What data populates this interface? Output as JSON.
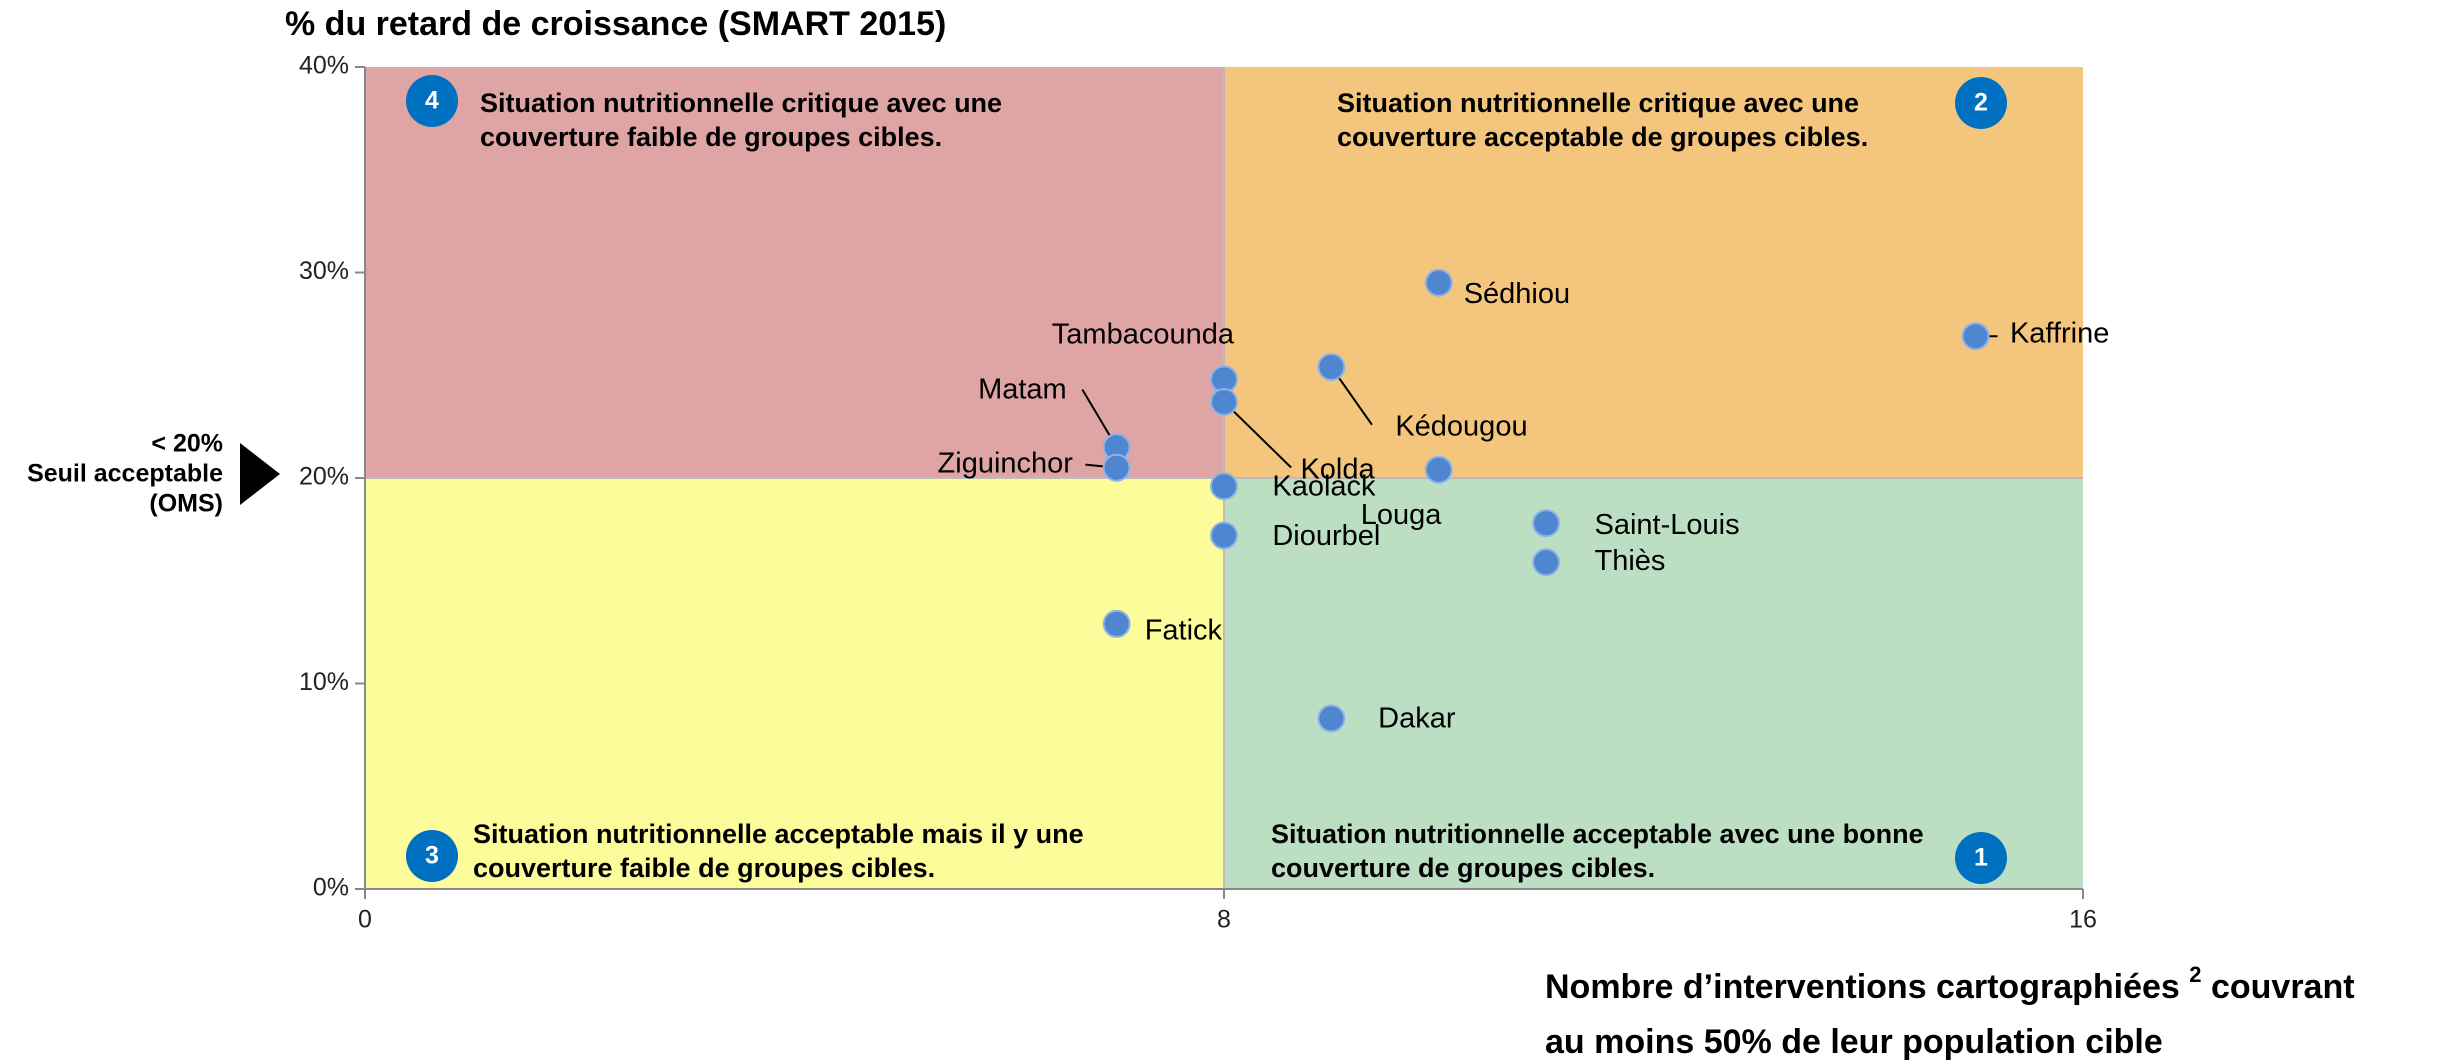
{
  "chart_data": {
    "type": "scatter",
    "title": "% du retard de croissance (SMART 2015)",
    "x_label": [
      [
        "Nombre d’interventions cartographiées ",
        "2",
        " couvrant"
      ],
      [
        "au moins 50% de leur population cible"
      ]
    ],
    "threshold_label": [
      "< 20%",
      "Seuil acceptable",
      "(OMS)"
    ],
    "x_threshold": 8,
    "y_threshold": 20,
    "xlim": [
      0,
      16
    ],
    "xticks": [
      0,
      8,
      16
    ],
    "ylim": [
      0,
      40
    ],
    "yticks": [
      {
        "value": 0,
        "label": "0%"
      },
      {
        "value": 10,
        "label": "10%"
      },
      {
        "value": 20,
        "label": "20%"
      },
      {
        "value": 30,
        "label": "30%"
      },
      {
        "value": 40,
        "label": "40%"
      }
    ],
    "color": "#4f86d0",
    "quadrants": [
      {
        "number": "4",
        "corner": "top-left",
        "color": "#dfa5a4",
        "text": [
          "Situation nutritionnelle critique avec une",
          "couverture faible de groupes cibles."
        ]
      },
      {
        "number": "2",
        "corner": "top-right",
        "color": "#f4c57c",
        "text": [
          "Situation nutritionnelle critique avec une",
          "couverture acceptable de groupes cibles."
        ]
      },
      {
        "number": "3",
        "corner": "bottom-left",
        "color": "#fdfc9b",
        "text": [
          "Situation nutritionnelle acceptable mais il y une",
          "couverture faible de groupes cibles."
        ]
      },
      {
        "number": "1",
        "corner": "bottom-right",
        "color": "#bcdfc4",
        "text": [
          "Situation nutritionnelle acceptable avec une bonne",
          "couverture de groupes cibles."
        ]
      }
    ],
    "series": [
      {
        "names": [
          "Sédhiou",
          "Kaffrine",
          "Tambacounda",
          "Kédougou",
          "Kolda",
          "Matam",
          "Ziguinchor",
          "Kaolack",
          "Louga",
          "Saint-Louis",
          "Thiès",
          "Diourbel",
          "Fatick",
          "Dakar"
        ],
        "x": [
          10,
          15,
          8,
          9,
          8,
          7,
          7,
          8,
          10,
          11,
          11,
          8,
          7,
          9
        ],
        "values": [
          29.5,
          26.9,
          24.8,
          25.4,
          23.7,
          21.5,
          20.5,
          19.6,
          20.4,
          17.8,
          15.9,
          17.2,
          12.9,
          8.3
        ]
      }
    ]
  }
}
